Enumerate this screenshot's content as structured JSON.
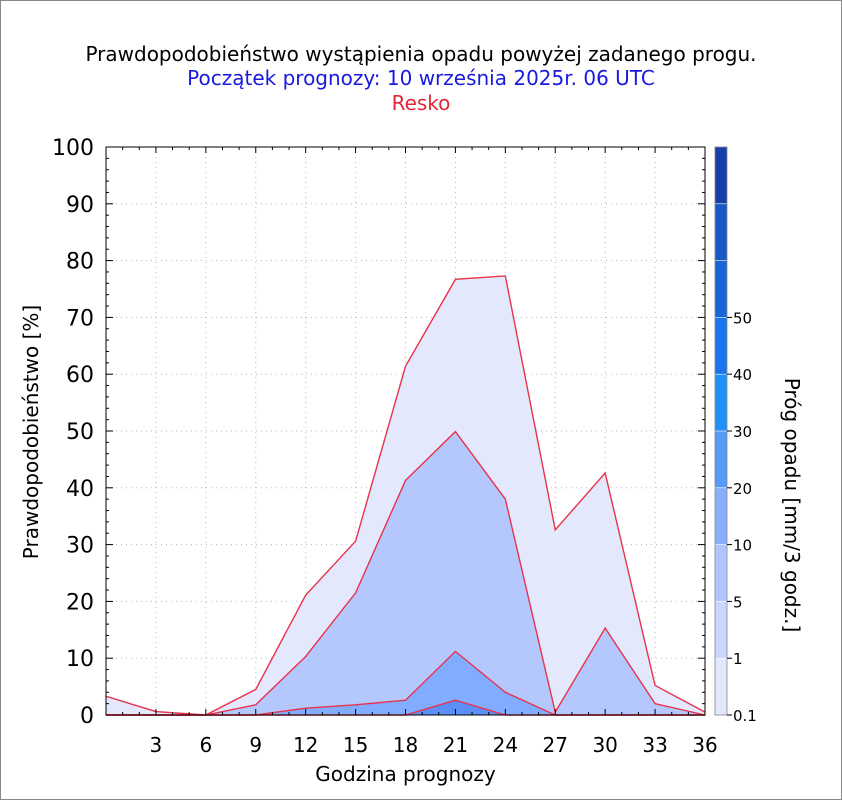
{
  "header": {
    "title": "Prawdopodobieństwo wystąpienia opadu powyżej zadanego progu.",
    "subtitle": "Początek prognozy: 10 września 2025r. 06 UTC",
    "location": "Resko"
  },
  "colors": {
    "title": "#000000",
    "subtitle": "#1a1adf",
    "location": "#e0283a",
    "series_line": "#e8334a",
    "fills": [
      "#e3e8fd",
      "#b4c8fd",
      "#82acff",
      "#5b8ff5"
    ]
  },
  "chart_data": {
    "type": "area",
    "xlabel": "Godzina prognozy",
    "ylabel": "Prawdopodobieństwo [%]",
    "x": [
      0,
      3,
      6,
      9,
      12,
      15,
      18,
      21,
      24,
      27,
      30,
      33,
      36
    ],
    "x_ticks": [
      "3",
      "6",
      "9",
      "12",
      "15",
      "18",
      "21",
      "24",
      "27",
      "30",
      "33",
      "36"
    ],
    "xlim": [
      0,
      36
    ],
    "ylim": [
      0,
      100
    ],
    "y_ticks": [
      "0",
      "10",
      "20",
      "30",
      "40",
      "50",
      "60",
      "70",
      "80",
      "90",
      "100"
    ],
    "series": [
      {
        "threshold": "0.1",
        "values": [
          3.3,
          0.6,
          0,
          4.5,
          21.1,
          30.6,
          61.4,
          76.7,
          77.3,
          32.6,
          42.6,
          5.2,
          0.5
        ]
      },
      {
        "threshold": "1",
        "values": [
          0,
          0,
          0,
          1.8,
          10.3,
          21.5,
          41.3,
          49.9,
          38.0,
          0.5,
          15.3,
          2.0,
          0
        ]
      },
      {
        "threshold": "5",
        "values": [
          0,
          0,
          0,
          0,
          1.2,
          1.8,
          2.6,
          11.2,
          4.0,
          0,
          0,
          0,
          0
        ]
      },
      {
        "threshold": "10",
        "values": [
          0,
          0,
          0,
          0,
          0,
          0,
          0,
          2.6,
          0,
          0,
          0,
          0,
          0
        ]
      }
    ],
    "colorbar": {
      "label": "Próg opadu [mm/3 godz.]",
      "ticks": [
        "0.1",
        "1",
        "5",
        "10",
        "20",
        "30",
        "40",
        "50"
      ],
      "colors": [
        "#e3e8fd",
        "#c9d6fd",
        "#b0c5fd",
        "#88affc",
        "#589af8",
        "#2090f8",
        "#1a74ec",
        "#1a64da",
        "#1a56c8",
        "#1640a8"
      ]
    }
  }
}
